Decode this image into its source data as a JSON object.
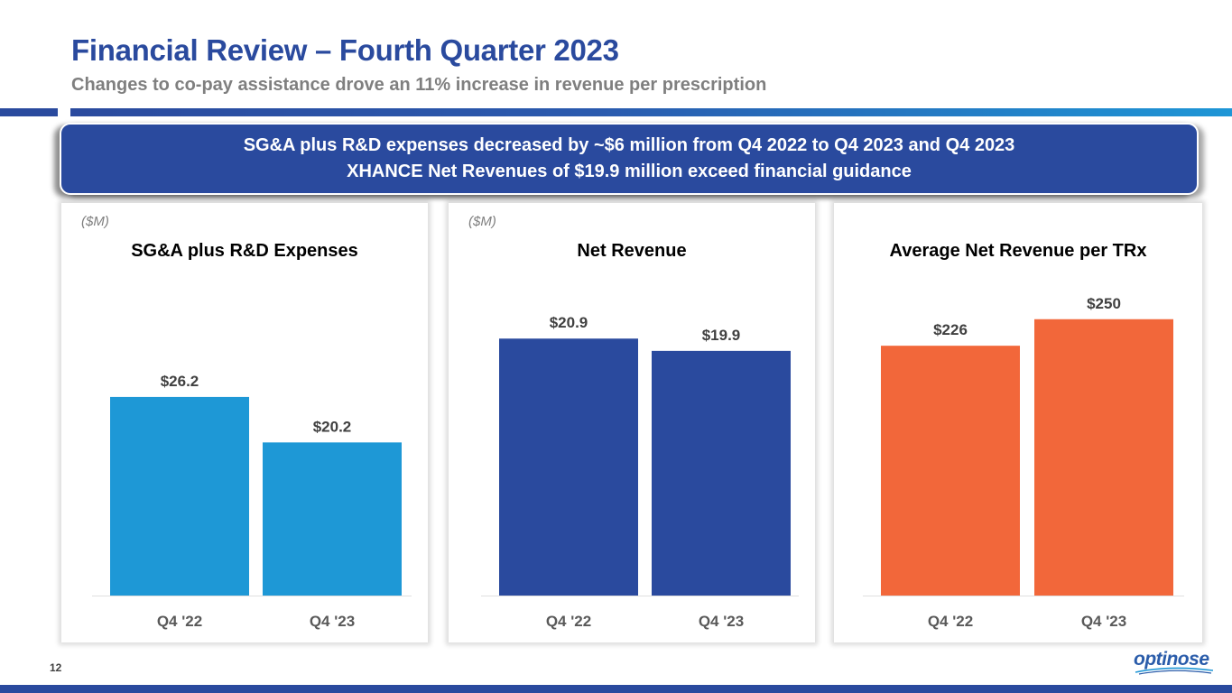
{
  "header": {
    "title": "Financial Review – Fourth Quarter 2023",
    "subtitle": "Changes to co-pay assistance drove an 11% increase in revenue per prescription"
  },
  "callout": {
    "line1": "SG&A plus R&D expenses decreased by ~$6 million from Q4 2022 to Q4 2023 and Q4 2023",
    "line2": "XHANCE Net Revenues of $19.9 million exceed financial guidance"
  },
  "colors": {
    "brand_blue": "#2A4A9E",
    "light_blue": "#1E96D6",
    "orange": "#F2673A",
    "gray_text": "#7F7F7F"
  },
  "chart_data": [
    {
      "type": "bar",
      "title": "SG&A plus R&D Expenses",
      "unit_label": "($M)",
      "categories": [
        "Q4 '22",
        "Q4 '23"
      ],
      "values": [
        26.2,
        20.2
      ],
      "data_labels": [
        "$26.2",
        "$20.2"
      ],
      "color": "#1E98D6",
      "xlabel": "",
      "ylabel": "",
      "ylim": [
        0,
        30
      ],
      "grid": false,
      "legend": "none"
    },
    {
      "type": "bar",
      "title": "Net Revenue",
      "unit_label": "($M)",
      "categories": [
        "Q4 '22",
        "Q4 '23"
      ],
      "values": [
        20.9,
        19.9
      ],
      "data_labels": [
        "$20.9",
        "$19.9"
      ],
      "color": "#2A4A9E",
      "xlabel": "",
      "ylabel": "",
      "ylim": [
        0,
        24
      ],
      "grid": false,
      "legend": "none"
    },
    {
      "type": "bar",
      "title": "Average Net Revenue per TRx",
      "unit_label": "",
      "categories": [
        "Q4 '22",
        "Q4 '23"
      ],
      "values": [
        226,
        250
      ],
      "data_labels": [
        "$226",
        "$250"
      ],
      "color": "#F2673A",
      "xlabel": "",
      "ylabel": "",
      "ylim": [
        0,
        280
      ],
      "grid": false,
      "legend": "none"
    }
  ],
  "footer": {
    "page_number": "12",
    "logo_text": "optinose"
  }
}
